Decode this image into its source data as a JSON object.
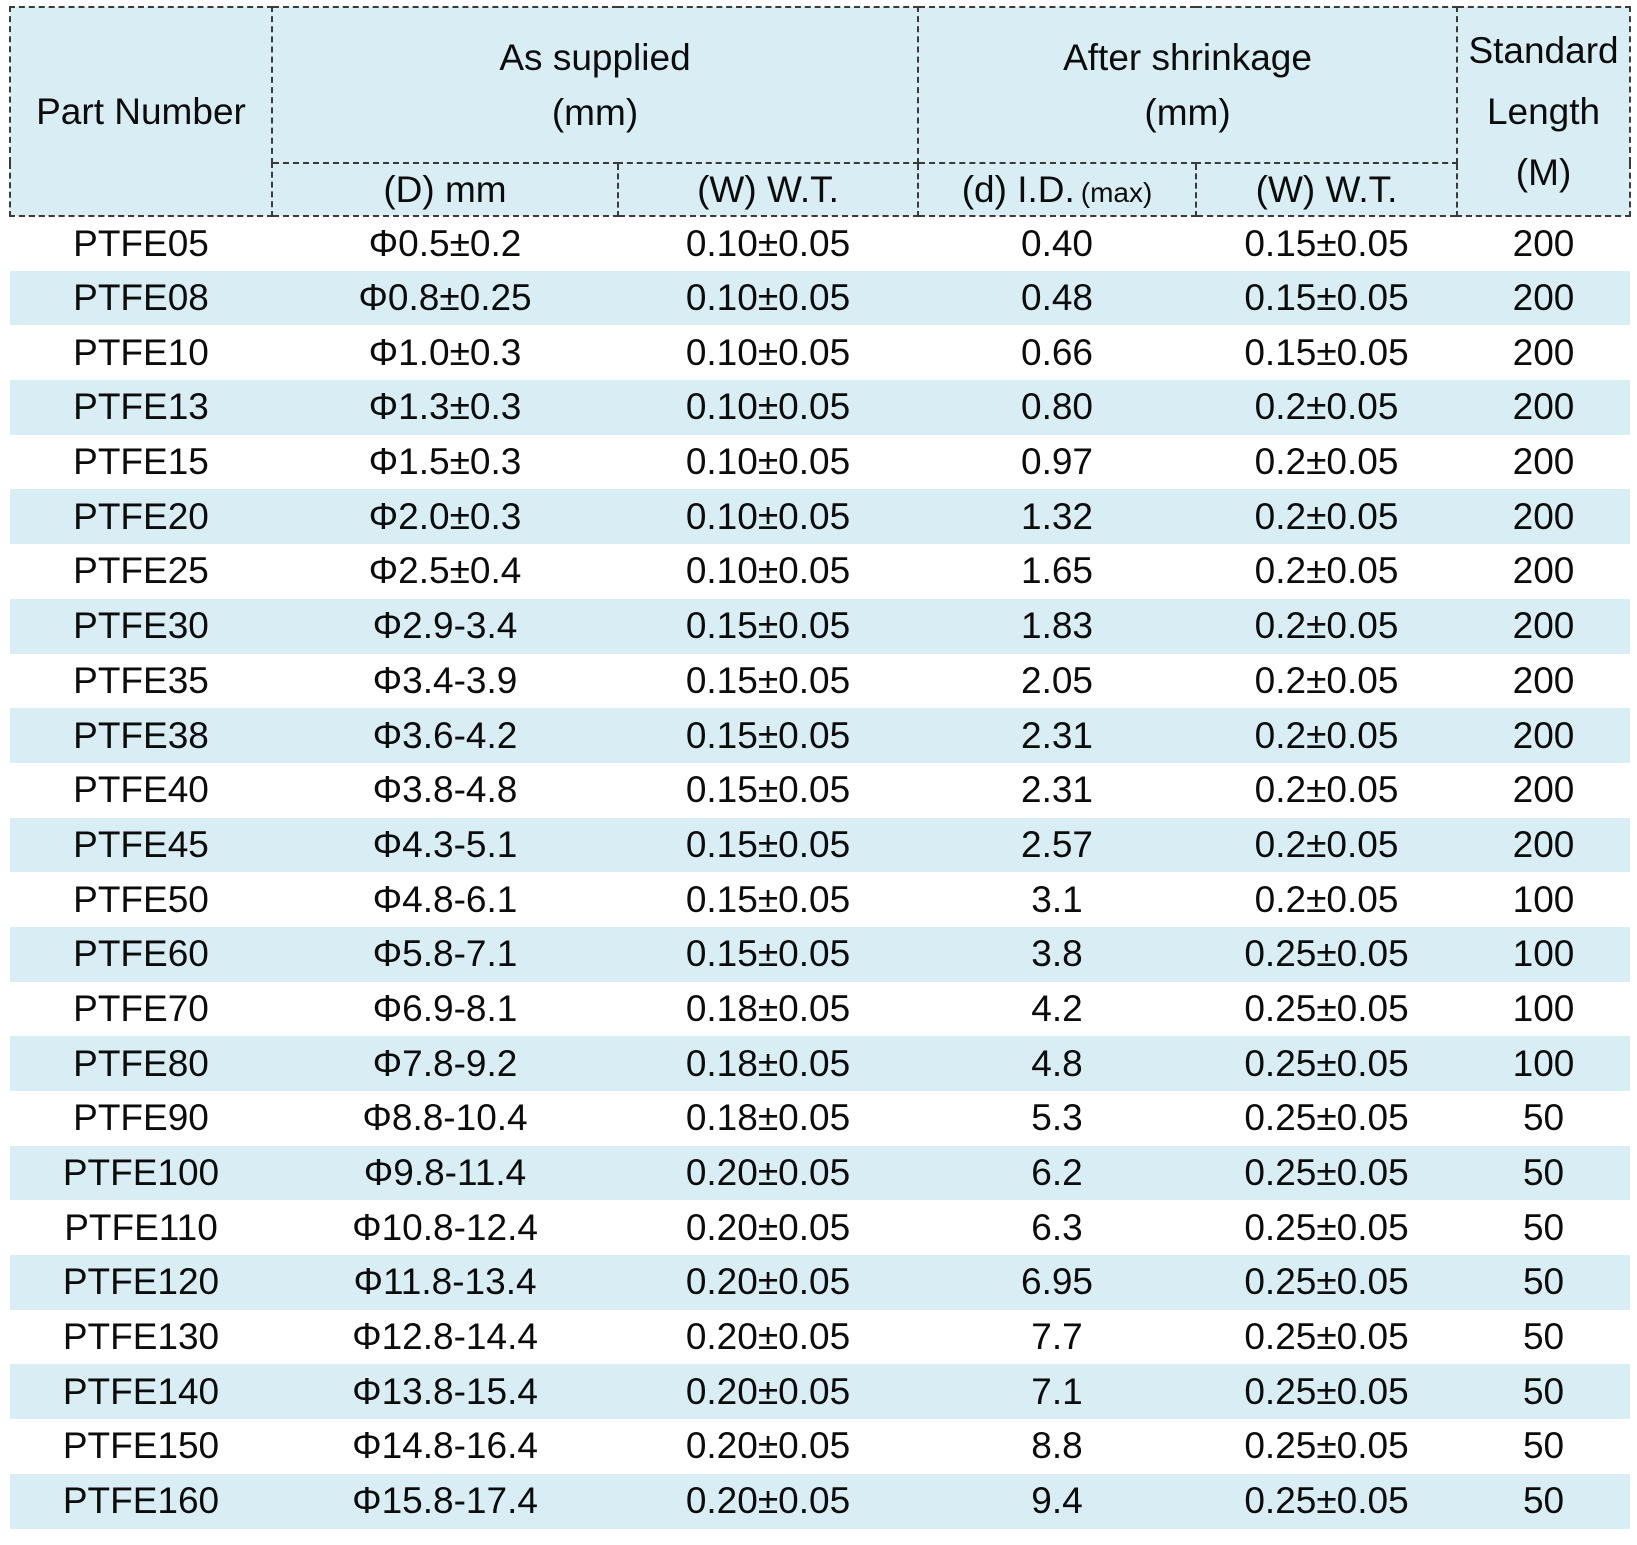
{
  "table": {
    "colors": {
      "header_bg": "#d9edf4",
      "stripe_bg": "#d9edf4",
      "border": "#3a3a3a",
      "text": "#0c0c0c",
      "page_bg": "#ffffff"
    },
    "header": {
      "part_number": "Part Number",
      "as_supplied": {
        "line1": "As supplied",
        "line2": "(mm)"
      },
      "after_shrinkage": {
        "line1": "After shrinkage",
        "line2": "(mm)"
      },
      "standard_length": {
        "line1": "Standard",
        "line2": "Length",
        "line3": "(M)"
      },
      "sub_columns": {
        "od": "(D) mm",
        "wt_supplied": "(W) W.T.",
        "id": "(d) I.D.",
        "id_max": "(max)",
        "wt_shrinkage": "(W) W.T."
      }
    },
    "column_keys": [
      "part-number",
      "od-as-supplied",
      "wt-as-supplied",
      "id-after-shrinkage",
      "wt-after-shrinkage",
      "standard-length"
    ],
    "rows": [
      [
        "PTFE05",
        "Φ0.5±0.2",
        "0.10±0.05",
        "0.40",
        "0.15±0.05",
        "200"
      ],
      [
        "PTFE08",
        "Φ0.8±0.25",
        "0.10±0.05",
        "0.48",
        "0.15±0.05",
        "200"
      ],
      [
        "PTFE10",
        "Φ1.0±0.3",
        "0.10±0.05",
        "0.66",
        "0.15±0.05",
        "200"
      ],
      [
        "PTFE13",
        "Φ1.3±0.3",
        "0.10±0.05",
        "0.80",
        "0.2±0.05",
        "200"
      ],
      [
        "PTFE15",
        "Φ1.5±0.3",
        "0.10±0.05",
        "0.97",
        "0.2±0.05",
        "200"
      ],
      [
        "PTFE20",
        "Φ2.0±0.3",
        "0.10±0.05",
        "1.32",
        "0.2±0.05",
        "200"
      ],
      [
        "PTFE25",
        "Φ2.5±0.4",
        "0.10±0.05",
        "1.65",
        "0.2±0.05",
        "200"
      ],
      [
        "PTFE30",
        "Φ2.9-3.4",
        "0.15±0.05",
        "1.83",
        "0.2±0.05",
        "200"
      ],
      [
        "PTFE35",
        "Φ3.4-3.9",
        "0.15±0.05",
        "2.05",
        "0.2±0.05",
        "200"
      ],
      [
        "PTFE38",
        "Φ3.6-4.2",
        "0.15±0.05",
        "2.31",
        "0.2±0.05",
        "200"
      ],
      [
        "PTFE40",
        "Φ3.8-4.8",
        "0.15±0.05",
        "2.31",
        "0.2±0.05",
        "200"
      ],
      [
        "PTFE45",
        "Φ4.3-5.1",
        "0.15±0.05",
        "2.57",
        "0.2±0.05",
        "200"
      ],
      [
        "PTFE50",
        "Φ4.8-6.1",
        "0.15±0.05",
        "3.1",
        "0.2±0.05",
        "100"
      ],
      [
        "PTFE60",
        "Φ5.8-7.1",
        "0.15±0.05",
        "3.8",
        "0.25±0.05",
        "100"
      ],
      [
        "PTFE70",
        "Φ6.9-8.1",
        "0.18±0.05",
        "4.2",
        "0.25±0.05",
        "100"
      ],
      [
        "PTFE80",
        "Φ7.8-9.2",
        "0.18±0.05",
        "4.8",
        "0.25±0.05",
        "100"
      ],
      [
        "PTFE90",
        "Φ8.8-10.4",
        "0.18±0.05",
        "5.3",
        "0.25±0.05",
        "50"
      ],
      [
        "PTFE100",
        "Φ9.8-11.4",
        "0.20±0.05",
        "6.2",
        "0.25±0.05",
        "50"
      ],
      [
        "PTFE110",
        "Φ10.8-12.4",
        "0.20±0.05",
        "6.3",
        "0.25±0.05",
        "50"
      ],
      [
        "PTFE120",
        "Φ11.8-13.4",
        "0.20±0.05",
        "6.95",
        "0.25±0.05",
        "50"
      ],
      [
        "PTFE130",
        "Φ12.8-14.4",
        "0.20±0.05",
        "7.7",
        "0.25±0.05",
        "50"
      ],
      [
        "PTFE140",
        "Φ13.8-15.4",
        "0.20±0.05",
        "7.1",
        "0.25±0.05",
        "50"
      ],
      [
        "PTFE150",
        "Φ14.8-16.4",
        "0.20±0.05",
        "8.8",
        "0.25±0.05",
        "50"
      ],
      [
        "PTFE160",
        "Φ15.8-17.4",
        "0.20±0.05",
        "9.4",
        "0.25±0.05",
        "50"
      ]
    ]
  }
}
